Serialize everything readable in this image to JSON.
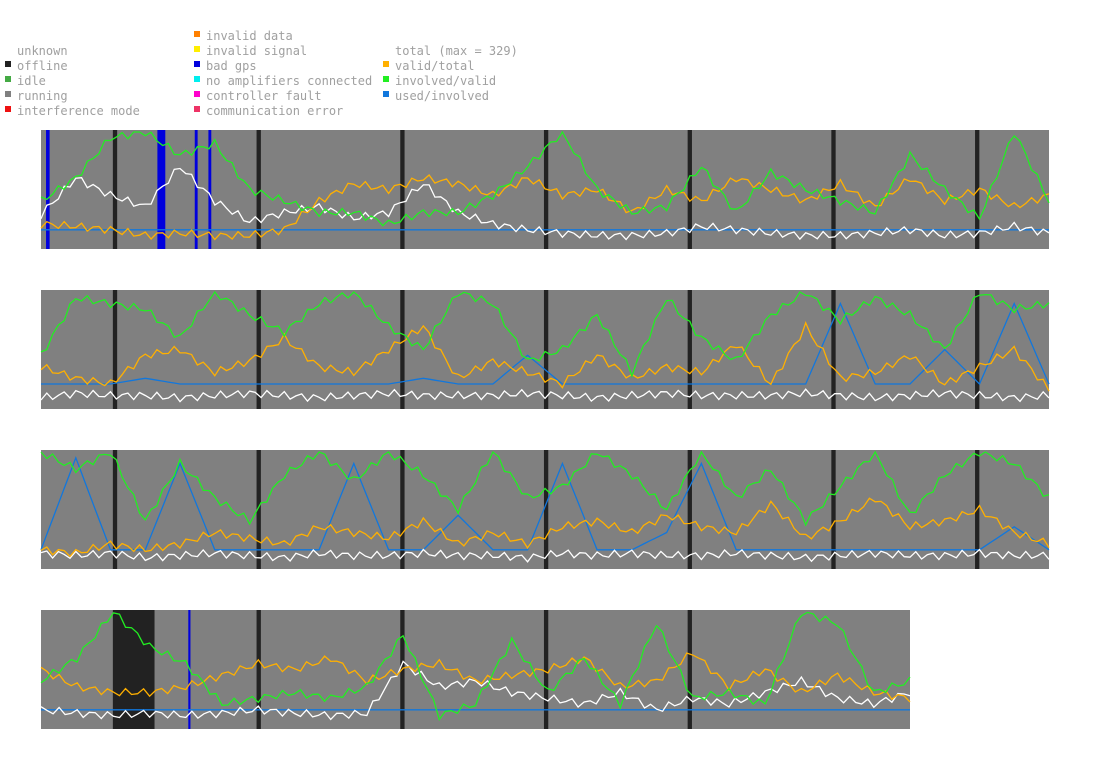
{
  "legend": {
    "col1": [
      {
        "label": "unknown",
        "color": "#ffffff"
      },
      {
        "label": "offline",
        "color": "#222222"
      },
      {
        "label": "idle",
        "color": "#44aa44"
      },
      {
        "label": "running",
        "color": "#808080"
      },
      {
        "label": "interference mode",
        "color": "#ee1111"
      }
    ],
    "col2": [
      {
        "label": "invalid data",
        "color": "#ff8000"
      },
      {
        "label": "invalid signal",
        "color": "#ffee00"
      },
      {
        "label": "bad gps",
        "color": "#0000dd"
      },
      {
        "label": "no amplifiers connected",
        "color": "#00eeee"
      },
      {
        "label": "controller fault",
        "color": "#ff00cc"
      },
      {
        "label": "communication error",
        "color": "#ee3366"
      }
    ],
    "col3": [
      {
        "label": "total (max = 329)",
        "color": "#ffffff"
      },
      {
        "label": "valid/total",
        "color": "#ffb000"
      },
      {
        "label": "involved/valid",
        "color": "#22ee22"
      },
      {
        "label": "used/involved",
        "color": "#1177dd"
      }
    ]
  },
  "chart_data": {
    "type": "line",
    "total_max": 329,
    "series_colors": {
      "total": "#ffffff",
      "valid_total": "#ffb000",
      "involved_valid": "#22ee22",
      "used_involved": "#1177dd"
    },
    "status_colors": {
      "running": "#808080",
      "offline": "#222222",
      "bad_gps": "#0000dd"
    },
    "rows": [
      {
        "days": 7,
        "offline_days": [
          [
            1,
            1.06
          ],
          [
            3,
            3.06
          ],
          [
            5,
            5.06
          ],
          [
            7,
            7.06
          ],
          [
            9,
            9.06
          ],
          [
            11,
            11.06
          ],
          [
            13,
            13.06
          ]
        ],
        "bad_gps_days": [
          [
            0.07,
            0.12
          ],
          [
            1.62,
            1.73
          ],
          [
            2.14,
            2.18
          ],
          [
            2.33,
            2.37
          ]
        ],
        "series": {
          "total": [
            0.28,
            0.6,
            0.45,
            0.35,
            0.7,
            0.4,
            0.22,
            0.3,
            0.35,
            0.25,
            0.3,
            0.55,
            0.3,
            0.2,
            0.15,
            0.12,
            0.1,
            0.1,
            0.12,
            0.18,
            0.15,
            0.12,
            0.1,
            0.1,
            0.12,
            0.15,
            0.1,
            0.12,
            0.18,
            0.12
          ],
          "valid_total": [
            0.2,
            0.18,
            0.15,
            0.1,
            0.12,
            0.1,
            0.1,
            0.15,
            0.4,
            0.55,
            0.5,
            0.6,
            0.55,
            0.45,
            0.6,
            0.45,
            0.5,
            0.3,
            0.5,
            0.4,
            0.6,
            0.5,
            0.4,
            0.55,
            0.35,
            0.6,
            0.4,
            0.5,
            0.35,
            0.45
          ],
          "involved_valid": [
            0.4,
            0.6,
            0.95,
            1.0,
            0.8,
            0.9,
            0.5,
            0.4,
            0.3,
            0.3,
            0.2,
            0.3,
            0.3,
            0.45,
            0.7,
            1.0,
            0.5,
            0.3,
            0.35,
            0.7,
            0.3,
            0.65,
            0.5,
            0.4,
            0.3,
            0.8,
            0.5,
            0.25,
            1.0,
            0.4
          ],
          "used_involved": [
            0.15,
            0.15,
            0.15,
            0.15,
            0.15,
            0.15,
            0.15,
            0.15,
            0.15,
            0.15,
            0.15,
            0.15,
            0.15,
            0.15,
            0.15,
            0.15,
            0.15,
            0.15,
            0.15,
            0.15,
            0.15,
            0.15,
            0.15,
            0.15,
            0.15,
            0.15,
            0.15,
            0.15,
            0.15,
            0.15
          ]
        }
      },
      {
        "days": 7,
        "offline_days": [
          [
            1,
            1.06
          ],
          [
            3,
            3.06
          ],
          [
            5,
            5.06
          ],
          [
            7,
            7.06
          ],
          [
            9,
            9.06
          ],
          [
            11,
            11.06
          ],
          [
            13,
            13.06
          ]
        ],
        "bad_gps_days": [],
        "series": {
          "total": [
            0.08,
            0.12,
            0.1,
            0.1,
            0.08,
            0.1,
            0.12,
            0.1,
            0.08,
            0.1,
            0.12,
            0.1,
            0.1,
            0.1,
            0.12,
            0.1,
            0.08,
            0.1,
            0.12,
            0.1,
            0.1,
            0.1,
            0.12,
            0.1,
            0.08,
            0.1,
            0.12,
            0.1,
            0.08,
            0.1
          ],
          "valid_total": [
            0.35,
            0.25,
            0.2,
            0.45,
            0.5,
            0.3,
            0.4,
            0.6,
            0.35,
            0.3,
            0.5,
            0.7,
            0.25,
            0.4,
            0.3,
            0.2,
            0.45,
            0.25,
            0.35,
            0.3,
            0.55,
            0.2,
            0.7,
            0.25,
            0.3,
            0.45,
            0.2,
            0.35,
            0.5,
            0.15
          ],
          "involved_valid": [
            0.45,
            0.95,
            0.9,
            0.85,
            0.6,
            1.0,
            0.8,
            0.65,
            0.9,
            1.0,
            0.7,
            0.5,
            1.0,
            0.9,
            0.4,
            0.5,
            0.8,
            0.3,
            0.95,
            0.6,
            0.4,
            0.8,
            1.0,
            0.75,
            0.95,
            0.8,
            0.5,
            1.0,
            0.85,
            0.9
          ],
          "used_involved": [
            0.2,
            0.2,
            0.2,
            0.25,
            0.2,
            0.2,
            0.2,
            0.2,
            0.2,
            0.2,
            0.2,
            0.25,
            0.2,
            0.2,
            0.45,
            0.2,
            0.2,
            0.2,
            0.2,
            0.2,
            0.2,
            0.2,
            0.2,
            0.9,
            0.2,
            0.2,
            0.5,
            0.2,
            0.9,
            0.2
          ]
        }
      },
      {
        "days": 7,
        "offline_days": [
          [
            1,
            1.06
          ],
          [
            3,
            3.06
          ],
          [
            5,
            5.06
          ],
          [
            7,
            7.06
          ],
          [
            9,
            9.06
          ],
          [
            11,
            11.06
          ],
          [
            13,
            13.06
          ]
        ],
        "bad_gps_days": [],
        "series": {
          "total": [
            0.12,
            0.1,
            0.12,
            0.08,
            0.1,
            0.12,
            0.1,
            0.08,
            0.12,
            0.1,
            0.1,
            0.12,
            0.1,
            0.1,
            0.08,
            0.12,
            0.1,
            0.12,
            0.1,
            0.1,
            0.12,
            0.1,
            0.08,
            0.1,
            0.12,
            0.1,
            0.1,
            0.12,
            0.1,
            0.1
          ],
          "valid_total": [
            0.15,
            0.12,
            0.2,
            0.15,
            0.2,
            0.3,
            0.25,
            0.2,
            0.35,
            0.3,
            0.25,
            0.4,
            0.2,
            0.3,
            0.2,
            0.35,
            0.4,
            0.3,
            0.45,
            0.35,
            0.3,
            0.55,
            0.25,
            0.4,
            0.6,
            0.35,
            0.4,
            0.5,
            0.3,
            0.2
          ],
          "involved_valid": [
            1.0,
            0.85,
            1.0,
            0.4,
            0.9,
            0.6,
            0.4,
            0.8,
            1.0,
            0.75,
            1.0,
            0.8,
            0.5,
            1.0,
            0.6,
            0.7,
            1.0,
            0.8,
            0.5,
            1.0,
            0.6,
            0.85,
            0.4,
            0.7,
            1.0,
            0.45,
            0.8,
            1.0,
            0.9,
            0.6
          ],
          "used_involved": [
            0.15,
            0.95,
            0.15,
            0.15,
            0.9,
            0.15,
            0.15,
            0.15,
            0.15,
            0.9,
            0.15,
            0.15,
            0.45,
            0.15,
            0.15,
            0.9,
            0.15,
            0.15,
            0.3,
            0.9,
            0.15,
            0.15,
            0.15,
            0.15,
            0.15,
            0.15,
            0.15,
            0.15,
            0.35,
            0.15
          ]
        }
      },
      {
        "days": 6,
        "offline_days": [
          [
            1,
            1.58
          ],
          [
            3,
            3.06
          ],
          [
            5,
            5.06
          ],
          [
            7,
            7.06
          ],
          [
            9,
            9.06
          ]
        ],
        "bad_gps_days": [
          [
            2.05,
            2.08
          ]
        ],
        "series": {
          "total": [
            0.15,
            0.12,
            0.1,
            0.12,
            0.1,
            0.12,
            0.15,
            0.12,
            0.1,
            0.12,
            0.55,
            0.35,
            0.4,
            0.3,
            0.25,
            0.2,
            0.3,
            0.15,
            0.25,
            0.2,
            0.3,
            0.4,
            0.25,
            0.2,
            0.3
          ],
          "valid_total": [
            0.5,
            0.35,
            0.3,
            0.3,
            0.35,
            0.45,
            0.55,
            0.5,
            0.6,
            0.4,
            0.5,
            0.55,
            0.4,
            0.45,
            0.5,
            0.6,
            0.35,
            0.4,
            0.65,
            0.35,
            0.5,
            0.3,
            0.45,
            0.3,
            0.25
          ],
          "involved_valid": [
            0.4,
            0.6,
            1.0,
            0.7,
            0.55,
            0.2,
            0.25,
            0.3,
            0.25,
            0.35,
            0.8,
            0.1,
            0.2,
            0.75,
            0.3,
            0.6,
            0.2,
            0.9,
            0.25,
            0.3,
            0.2,
            1.0,
            0.9,
            0.3,
            0.4
          ],
          "used_involved": [
            0.15,
            0.15,
            0.15,
            0.15,
            0.15,
            0.15,
            0.15,
            0.15,
            0.15,
            0.15,
            0.15,
            0.15,
            0.15,
            0.15,
            0.15,
            0.15,
            0.15,
            0.15,
            0.15,
            0.15,
            0.15,
            0.15,
            0.15,
            0.15,
            0.15
          ]
        }
      }
    ]
  }
}
